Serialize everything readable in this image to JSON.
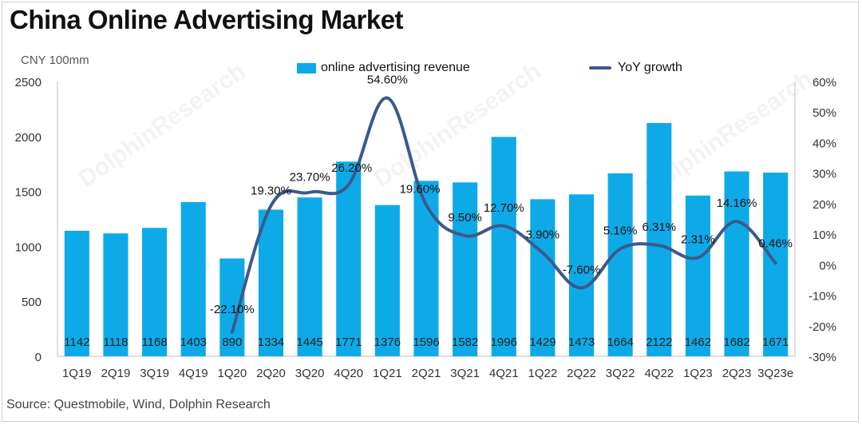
{
  "title": "China Online Advertising Market",
  "unit_label": "CNY 100mm",
  "source": "Source:   Questmobile, Wind, Dolphin Research",
  "watermark": "DolphinResearch",
  "colors": {
    "bar": "#0eaae8",
    "line": "#3b5a8c"
  },
  "chart_data": {
    "type": "bar+line",
    "title": "China Online Advertising Market",
    "categories": [
      "1Q19",
      "2Q19",
      "3Q19",
      "4Q19",
      "1Q20",
      "2Q20",
      "3Q20",
      "4Q20",
      "1Q21",
      "2Q21",
      "3Q21",
      "4Q21",
      "1Q22",
      "2Q22",
      "3Q22",
      "4Q22",
      "1Q23",
      "2Q23",
      "3Q23e"
    ],
    "series": [
      {
        "name": "online advertising revenue",
        "type": "bar",
        "axis": "left",
        "values": [
          1142,
          1118,
          1168,
          1403,
          890,
          1334,
          1445,
          1771,
          1376,
          1596,
          1582,
          1996,
          1429,
          1473,
          1664,
          2122,
          1462,
          1682,
          1671
        ]
      },
      {
        "name": "YoY growth",
        "type": "line",
        "axis": "right",
        "values": [
          null,
          null,
          null,
          null,
          -22.1,
          19.3,
          23.7,
          26.2,
          54.6,
          19.6,
          9.5,
          12.7,
          3.9,
          -7.6,
          5.16,
          6.31,
          2.31,
          14.16,
          0.46
        ],
        "labels": [
          "",
          "",
          "",
          "",
          "-22.10%",
          "19.30%",
          "23.70%",
          "26.20%",
          "54.60%",
          "19.60%",
          "9.50%",
          "12.70%",
          "3.90%",
          "-7.60%",
          "5.16%",
          "6.31%",
          "2.31%",
          "14.16%",
          "0.46%"
        ]
      }
    ],
    "y_left": {
      "range": [
        0,
        2500
      ],
      "ticks": [
        "0",
        "500",
        "1000",
        "1500",
        "2000",
        "2500"
      ],
      "tick_values": [
        0,
        500,
        1000,
        1500,
        2000,
        2500
      ]
    },
    "y_right": {
      "range": [
        -30,
        60
      ],
      "ticks": [
        "-30%",
        "-20%",
        "-10%",
        "0%",
        "10%",
        "20%",
        "30%",
        "40%",
        "50%",
        "60%"
      ],
      "tick_values": [
        -30,
        -20,
        -10,
        0,
        10,
        20,
        30,
        40,
        50,
        60
      ]
    },
    "legend": [
      "online advertising revenue",
      "YoY growth"
    ],
    "legend_position": "top",
    "grid": false
  }
}
